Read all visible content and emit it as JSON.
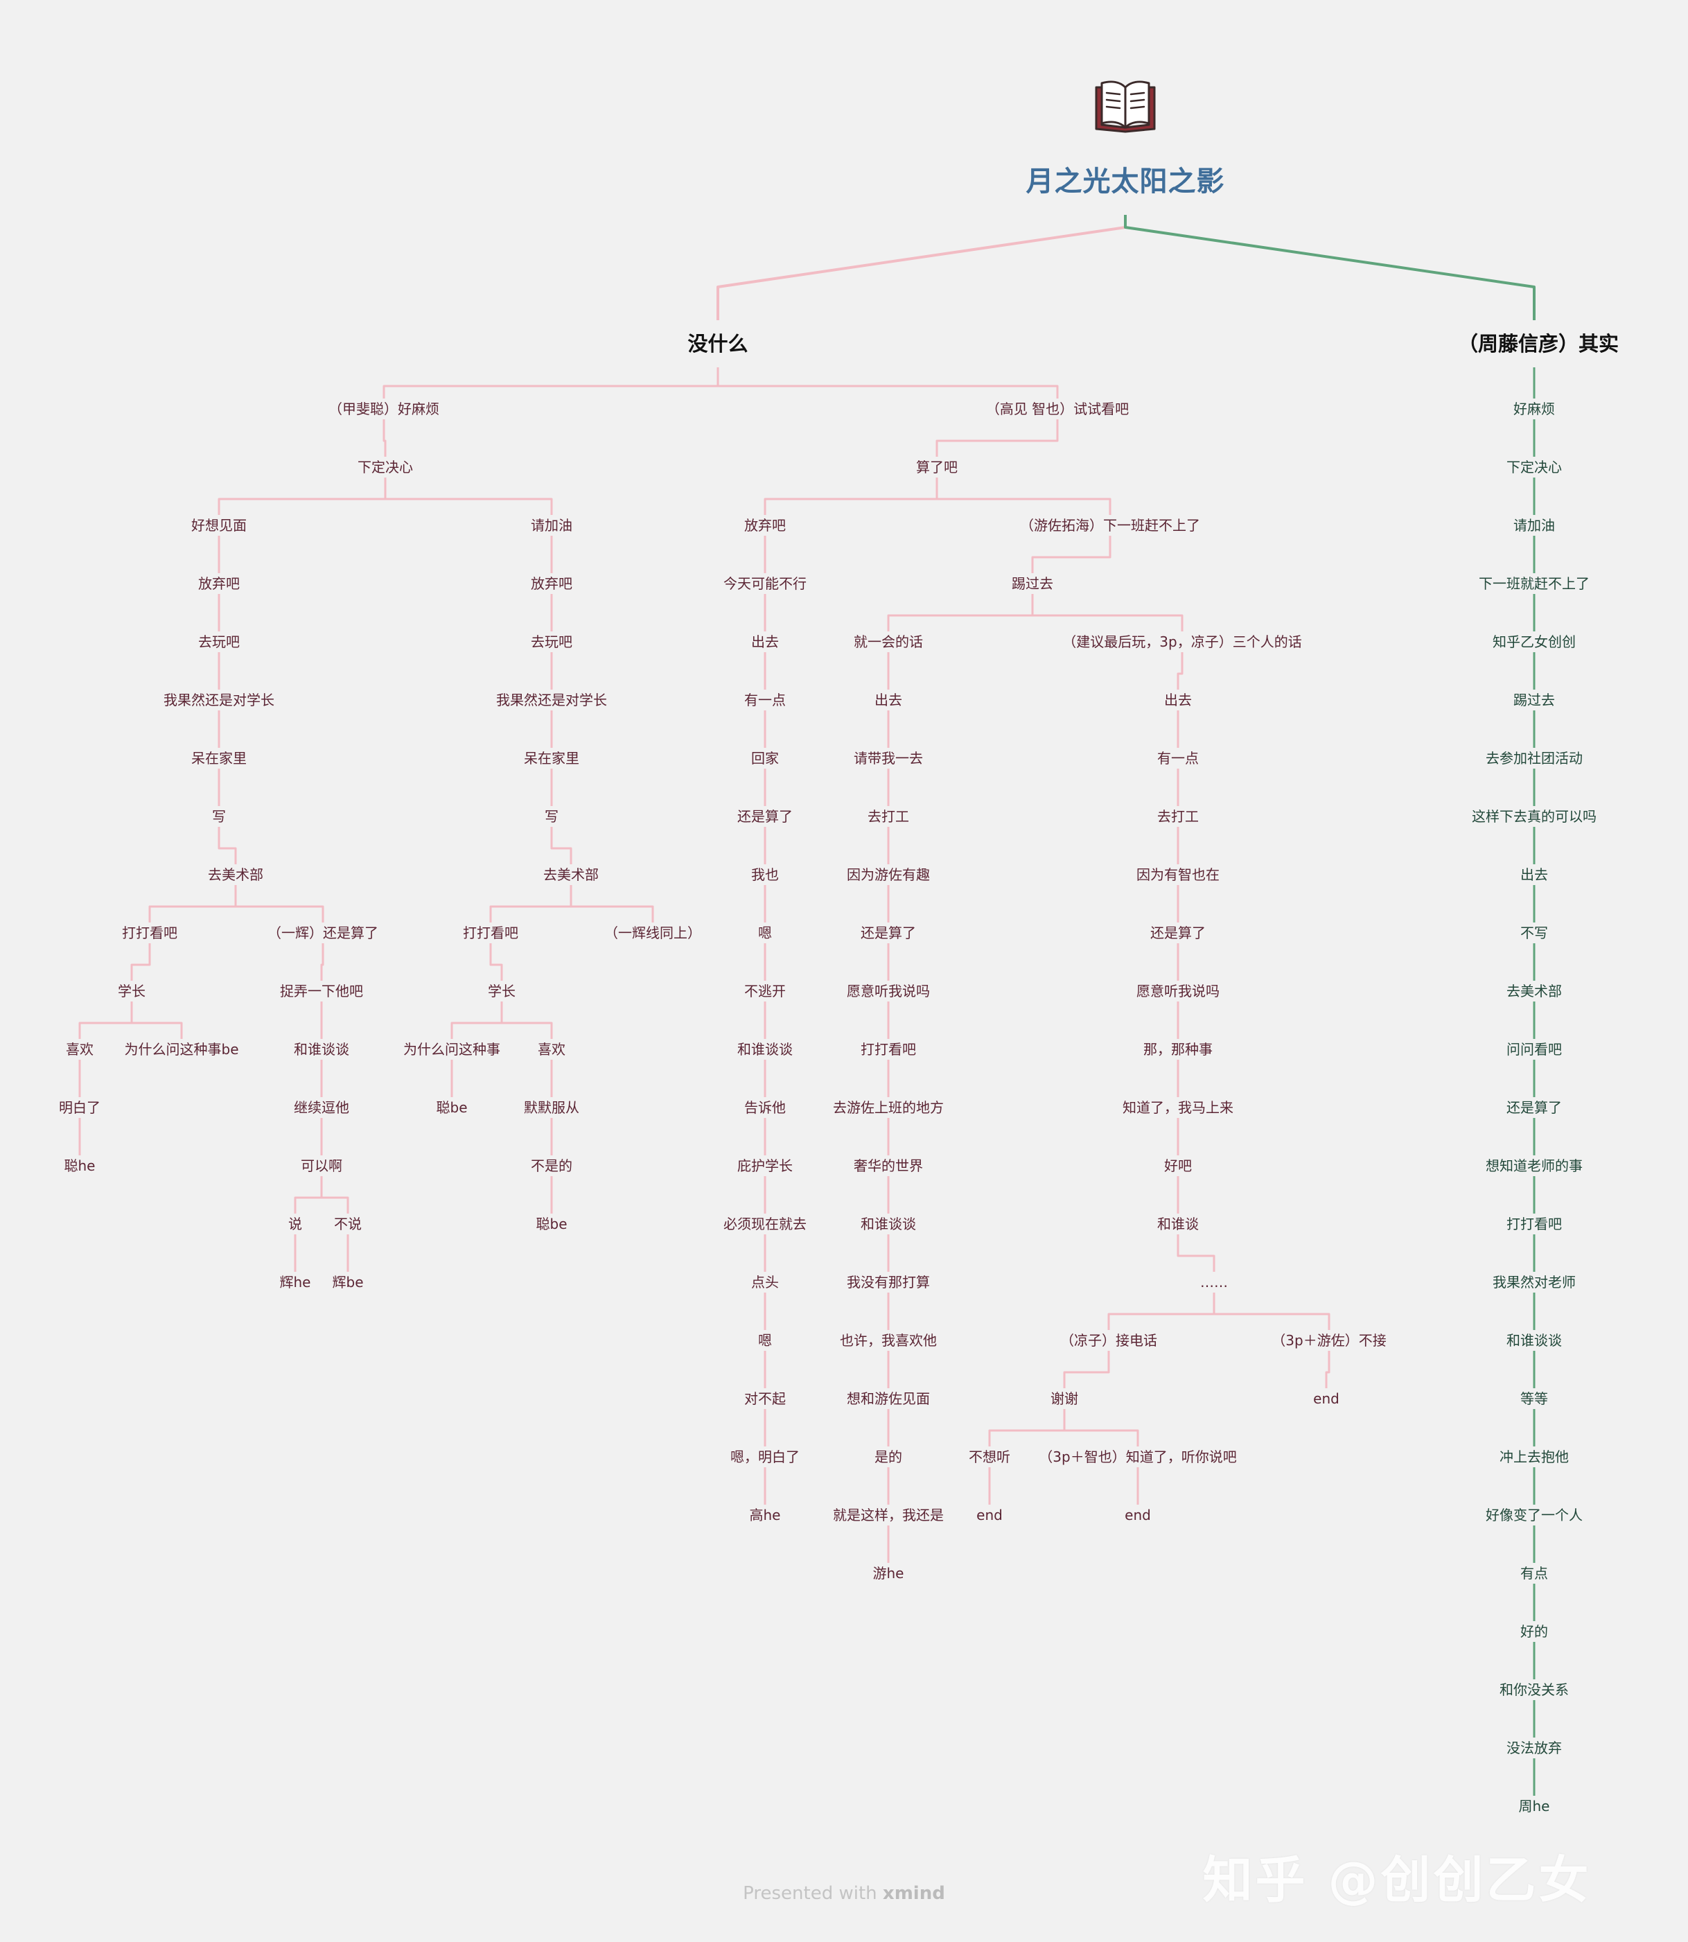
{
  "title": "月之光太阳之影",
  "footer": {
    "presented_with": "Presented with",
    "brand": "xmind"
  },
  "watermark": "知乎 @创创乙女",
  "colors": {
    "left_branch": "#f2bcc4",
    "right_branch": "#5fa47c",
    "title": "#3f6e9a",
    "node_text": "#5b2534"
  },
  "root_icon": "open-book-icon",
  "branches": {
    "left": "没什么",
    "right": "（周藤信彦）其实"
  },
  "nodes": [
    {
      "id": "L1",
      "label": "（甲斐聪）好麻烦",
      "parent": "B1"
    },
    {
      "id": "L2",
      "label": "下定决心",
      "parent": "L1"
    },
    {
      "id": "L3",
      "label": "好想见面",
      "parent": "L2"
    },
    {
      "id": "L4",
      "label": "放弃吧",
      "parent": "L3"
    },
    {
      "id": "L5",
      "label": "去玩吧",
      "parent": "L4"
    },
    {
      "id": "L6",
      "label": "我果然还是对学长",
      "parent": "L5"
    },
    {
      "id": "L7",
      "label": "呆在家里",
      "parent": "L6"
    },
    {
      "id": "L8",
      "label": "写",
      "parent": "L7"
    },
    {
      "id": "L9",
      "label": "去美术部",
      "parent": "L8"
    },
    {
      "id": "L10",
      "label": "打打看吧",
      "parent": "L9"
    },
    {
      "id": "L11",
      "label": "学长",
      "parent": "L10"
    },
    {
      "id": "L12",
      "label": "喜欢",
      "parent": "L11"
    },
    {
      "id": "L13",
      "label": "明白了",
      "parent": "L12"
    },
    {
      "id": "L14",
      "label": "聪he",
      "parent": "L13"
    },
    {
      "id": "L15",
      "label": "为什么问这种事be",
      "parent": "L11"
    },
    {
      "id": "L16",
      "label": "（一辉）还是算了",
      "parent": "L9"
    },
    {
      "id": "L17",
      "label": "捉弄一下他吧",
      "parent": "L16"
    },
    {
      "id": "L18",
      "label": "和谁谈谈",
      "parent": "L17"
    },
    {
      "id": "L19",
      "label": "继续逗他",
      "parent": "L18"
    },
    {
      "id": "L20",
      "label": "可以啊",
      "parent": "L19"
    },
    {
      "id": "L21",
      "label": "说",
      "parent": "L20"
    },
    {
      "id": "L22",
      "label": "辉he",
      "parent": "L21"
    },
    {
      "id": "L23",
      "label": "不说",
      "parent": "L20"
    },
    {
      "id": "L24",
      "label": "辉be",
      "parent": "L23"
    },
    {
      "id": "L25",
      "label": "请加油",
      "parent": "L2"
    },
    {
      "id": "L26",
      "label": "放弃吧",
      "parent": "L25"
    },
    {
      "id": "L27",
      "label": "去玩吧",
      "parent": "L26"
    },
    {
      "id": "L28",
      "label": "我果然还是对学长",
      "parent": "L27"
    },
    {
      "id": "L29",
      "label": "呆在家里",
      "parent": "L28"
    },
    {
      "id": "L30",
      "label": "写",
      "parent": "L29"
    },
    {
      "id": "L31",
      "label": "去美术部",
      "parent": "L30"
    },
    {
      "id": "L32",
      "label": "打打看吧",
      "parent": "L31"
    },
    {
      "id": "L33",
      "label": "学长",
      "parent": "L32"
    },
    {
      "id": "L34",
      "label": "为什么问这种事",
      "parent": "L33"
    },
    {
      "id": "L35",
      "label": "聪be",
      "parent": "L34"
    },
    {
      "id": "L36",
      "label": "喜欢",
      "parent": "L33"
    },
    {
      "id": "L37",
      "label": "默默服从",
      "parent": "L36"
    },
    {
      "id": "L38",
      "label": "不是的",
      "parent": "L37"
    },
    {
      "id": "L39",
      "label": "聪be",
      "parent": "L38"
    },
    {
      "id": "L40",
      "label": "（一辉线同上）",
      "parent": "L31"
    },
    {
      "id": "M1",
      "label": "（高见 智也）试试看吧",
      "parent": "B1"
    },
    {
      "id": "M2",
      "label": "算了吧",
      "parent": "M1"
    },
    {
      "id": "M3",
      "label": "放弃吧",
      "parent": "M2"
    },
    {
      "id": "M4",
      "label": "今天可能不行",
      "parent": "M3"
    },
    {
      "id": "M5",
      "label": "出去",
      "parent": "M4"
    },
    {
      "id": "M6",
      "label": "有一点",
      "parent": "M5"
    },
    {
      "id": "M7",
      "label": "回家",
      "parent": "M6"
    },
    {
      "id": "M8",
      "label": "还是算了",
      "parent": "M7"
    },
    {
      "id": "M9",
      "label": "我也",
      "parent": "M8"
    },
    {
      "id": "M10",
      "label": "嗯",
      "parent": "M9"
    },
    {
      "id": "M11",
      "label": "不逃开",
      "parent": "M10"
    },
    {
      "id": "M12",
      "label": "和谁谈谈",
      "parent": "M11"
    },
    {
      "id": "M13",
      "label": "告诉他",
      "parent": "M12"
    },
    {
      "id": "M14",
      "label": "庇护学长",
      "parent": "M13"
    },
    {
      "id": "M15",
      "label": "必须现在就去",
      "parent": "M14"
    },
    {
      "id": "M16",
      "label": "点头",
      "parent": "M15"
    },
    {
      "id": "M17",
      "label": "嗯",
      "parent": "M16"
    },
    {
      "id": "M18",
      "label": "对不起",
      "parent": "M17"
    },
    {
      "id": "M19",
      "label": "嗯，明白了",
      "parent": "M18"
    },
    {
      "id": "M20",
      "label": "高he",
      "parent": "M19"
    },
    {
      "id": "M21",
      "label": "（游佐拓海）下一班赶不上了",
      "parent": "M2"
    },
    {
      "id": "M22",
      "label": "踢过去",
      "parent": "M21"
    },
    {
      "id": "M23",
      "label": "就一会的话",
      "parent": "M22"
    },
    {
      "id": "M24",
      "label": "出去",
      "parent": "M23"
    },
    {
      "id": "M25",
      "label": "请带我一去",
      "parent": "M24"
    },
    {
      "id": "M26",
      "label": "去打工",
      "parent": "M25"
    },
    {
      "id": "M27",
      "label": "因为游佐有趣",
      "parent": "M26"
    },
    {
      "id": "M28",
      "label": "还是算了",
      "parent": "M27"
    },
    {
      "id": "M29",
      "label": "愿意听我说吗",
      "parent": "M28"
    },
    {
      "id": "M30",
      "label": "打打看吧",
      "parent": "M29"
    },
    {
      "id": "M31",
      "label": "去游佐上班的地方",
      "parent": "M30"
    },
    {
      "id": "M32",
      "label": "奢华的世界",
      "parent": "M31"
    },
    {
      "id": "M33",
      "label": "和谁谈谈",
      "parent": "M32"
    },
    {
      "id": "M34",
      "label": "我没有那打算",
      "parent": "M33"
    },
    {
      "id": "M35",
      "label": "也许，我喜欢他",
      "parent": "M34"
    },
    {
      "id": "M36",
      "label": "想和游佐见面",
      "parent": "M35"
    },
    {
      "id": "M37",
      "label": "是的",
      "parent": "M36"
    },
    {
      "id": "M38",
      "label": "就是这样，我还是",
      "parent": "M37"
    },
    {
      "id": "M39",
      "label": "游he",
      "parent": "M38"
    },
    {
      "id": "M40",
      "label": "（建议最后玩，3p，凉子）三个人的话",
      "parent": "M22"
    },
    {
      "id": "M41",
      "label": "出去",
      "parent": "M40"
    },
    {
      "id": "M42",
      "label": "有一点",
      "parent": "M41"
    },
    {
      "id": "M43",
      "label": "去打工",
      "parent": "M42"
    },
    {
      "id": "M44",
      "label": "因为有智也在",
      "parent": "M43"
    },
    {
      "id": "M45",
      "label": "还是算了",
      "parent": "M44"
    },
    {
      "id": "M46",
      "label": "愿意听我说吗",
      "parent": "M45"
    },
    {
      "id": "M47",
      "label": "那，那种事",
      "parent": "M46"
    },
    {
      "id": "M48",
      "label": "知道了，我马上来",
      "parent": "M47"
    },
    {
      "id": "M49",
      "label": "好吧",
      "parent": "M48"
    },
    {
      "id": "M50",
      "label": "和谁谈",
      "parent": "M49"
    },
    {
      "id": "M51",
      "label": "……",
      "parent": "M50"
    },
    {
      "id": "M52",
      "label": "（凉子）接电话",
      "parent": "M51"
    },
    {
      "id": "M53",
      "label": "谢谢",
      "parent": "M52"
    },
    {
      "id": "M54",
      "label": "不想听",
      "parent": "M53"
    },
    {
      "id": "M55",
      "label": "end",
      "parent": "M54"
    },
    {
      "id": "M56",
      "label": "（3p＋智也）知道了，听你说吧",
      "parent": "M53"
    },
    {
      "id": "M57",
      "label": "end",
      "parent": "M56"
    },
    {
      "id": "M58",
      "label": "（3p＋游佐）不接",
      "parent": "M51"
    },
    {
      "id": "M59",
      "label": "end",
      "parent": "M58"
    },
    {
      "id": "R1",
      "label": "好麻烦",
      "parent": "B2"
    },
    {
      "id": "R2",
      "label": "下定决心",
      "parent": "R1"
    },
    {
      "id": "R3",
      "label": "请加油",
      "parent": "R2"
    },
    {
      "id": "R4",
      "label": "下一班就赶不上了",
      "parent": "R3"
    },
    {
      "id": "R5",
      "label": "知乎乙女创创",
      "parent": "R4"
    },
    {
      "id": "R6",
      "label": "踢过去",
      "parent": "R5"
    },
    {
      "id": "R7",
      "label": "去参加社团活动",
      "parent": "R6"
    },
    {
      "id": "R8",
      "label": "这样下去真的可以吗",
      "parent": "R7"
    },
    {
      "id": "R9",
      "label": "出去",
      "parent": "R8"
    },
    {
      "id": "R10",
      "label": "不写",
      "parent": "R9"
    },
    {
      "id": "R11",
      "label": "去美术部",
      "parent": "R10"
    },
    {
      "id": "R12",
      "label": "问问看吧",
      "parent": "R11"
    },
    {
      "id": "R13",
      "label": "还是算了",
      "parent": "R12"
    },
    {
      "id": "R14",
      "label": "想知道老师的事",
      "parent": "R13"
    },
    {
      "id": "R15",
      "label": "打打看吧",
      "parent": "R14"
    },
    {
      "id": "R16",
      "label": "我果然对老师",
      "parent": "R15"
    },
    {
      "id": "R17",
      "label": "和谁谈谈",
      "parent": "R16"
    },
    {
      "id": "R18",
      "label": "等等",
      "parent": "R17"
    },
    {
      "id": "R19",
      "label": "冲上去抱他",
      "parent": "R18"
    },
    {
      "id": "R20",
      "label": "好像变了一个人",
      "parent": "R19"
    },
    {
      "id": "R21",
      "label": "有点",
      "parent": "R20"
    },
    {
      "id": "R22",
      "label": "好的",
      "parent": "R21"
    },
    {
      "id": "R23",
      "label": "和你没关系",
      "parent": "R22"
    },
    {
      "id": "R24",
      "label": "没法放弃",
      "parent": "R23"
    },
    {
      "id": "R25",
      "label": "周he",
      "parent": "R24"
    }
  ]
}
